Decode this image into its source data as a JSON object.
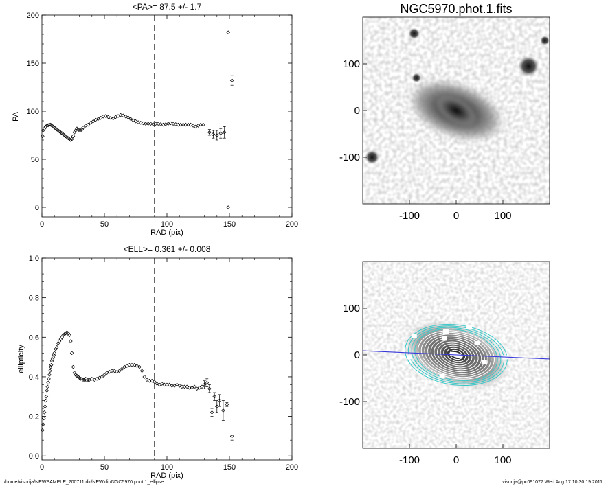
{
  "footer": {
    "path": "/home/visurija/NEWSAMPLE_200711.dir/NEW.dir/NGC5970.phot.1_ellipse",
    "user_stamp": "visurija@pc091077  Wed Aug 17 10:30:19 2011"
  },
  "chart_data": [
    {
      "type": "scatter",
      "title": "<PA>=  87.5 +/-   1.7",
      "xlabel": "RAD (pix)",
      "ylabel": "PA",
      "xlim": [
        0,
        200
      ],
      "ylim": [
        -10,
        200
      ],
      "xticks": [
        0,
        50,
        100,
        150,
        200
      ],
      "yticks": [
        0,
        50,
        100,
        150,
        200
      ],
      "vlines": [
        90,
        120
      ],
      "profile": [
        [
          0.5,
          74
        ],
        [
          1,
          80
        ],
        [
          2,
          82
        ],
        [
          3,
          84
        ],
        [
          4,
          85
        ],
        [
          5,
          85.5
        ],
        [
          6,
          86
        ],
        [
          7,
          86
        ],
        [
          8,
          85
        ],
        [
          9,
          84
        ],
        [
          10,
          83
        ],
        [
          11,
          82
        ],
        [
          12,
          81
        ],
        [
          13,
          80
        ],
        [
          14,
          79
        ],
        [
          15,
          78
        ],
        [
          16,
          77
        ],
        [
          17,
          76
        ],
        [
          18,
          75
        ],
        [
          19,
          74
        ],
        [
          20,
          73
        ],
        [
          21,
          72
        ],
        [
          22,
          71
        ],
        [
          23,
          70
        ],
        [
          24,
          71
        ],
        [
          25,
          74
        ],
        [
          26,
          78
        ],
        [
          27,
          80
        ],
        [
          28,
          82
        ],
        [
          29,
          81
        ],
        [
          30,
          80
        ],
        [
          31,
          80
        ],
        [
          32,
          81
        ],
        [
          33,
          83
        ],
        [
          35,
          85
        ],
        [
          37,
          86
        ],
        [
          39,
          88
        ],
        [
          41,
          89.5
        ],
        [
          43,
          91
        ],
        [
          45,
          92
        ],
        [
          47,
          93
        ],
        [
          49,
          94.5
        ],
        [
          51,
          95
        ],
        [
          53,
          94
        ],
        [
          55,
          93
        ],
        [
          57,
          92.5
        ],
        [
          59,
          94
        ],
        [
          61,
          95
        ],
        [
          63,
          96
        ],
        [
          65,
          95.5
        ],
        [
          67,
          94.5
        ],
        [
          69,
          93.5
        ],
        [
          71,
          92
        ],
        [
          73,
          90.5
        ],
        [
          75,
          89.5
        ],
        [
          77,
          88.5
        ],
        [
          79,
          88
        ],
        [
          81,
          87.5
        ],
        [
          83,
          87
        ],
        [
          85,
          87
        ],
        [
          87,
          87
        ],
        [
          89,
          86.5
        ],
        [
          91,
          87
        ],
        [
          93,
          87
        ],
        [
          95,
          86.5
        ],
        [
          97,
          86
        ],
        [
          99,
          86.5
        ],
        [
          101,
          87
        ],
        [
          103,
          87.5
        ],
        [
          105,
          87
        ],
        [
          107,
          86.5
        ],
        [
          109,
          86
        ],
        [
          111,
          86
        ],
        [
          113,
          86
        ],
        [
          115,
          86
        ],
        [
          117,
          86
        ],
        [
          119,
          86
        ],
        [
          121,
          85
        ],
        [
          123,
          84
        ],
        [
          125,
          85
        ],
        [
          127,
          86
        ],
        [
          129,
          86
        ]
      ],
      "errbars": [
        [
          134,
          78,
          3
        ],
        [
          137,
          76,
          4
        ],
        [
          140,
          75,
          5
        ],
        [
          143,
          77,
          5
        ],
        [
          146,
          78,
          6
        ],
        [
          152,
          132,
          5
        ]
      ],
      "outliers": [
        [
          149,
          182
        ],
        [
          149,
          0
        ]
      ]
    },
    {
      "type": "scatter",
      "title": "<ELL>= 0.361 +/-  0.008",
      "xlabel": "RAD (pix)",
      "ylabel": "ellipticity",
      "xlim": [
        0,
        200
      ],
      "ylim": [
        -0.02,
        1.0
      ],
      "xticks": [
        0,
        50,
        100,
        150,
        200
      ],
      "yticks": [
        0.0,
        0.2,
        0.4,
        0.6,
        0.8,
        1.0
      ],
      "ytick_labels": [
        "0.0",
        "0.2",
        "0.4",
        "0.6",
        "0.8",
        "1.0"
      ],
      "vlines": [
        90,
        120
      ],
      "profile": [
        [
          0.5,
          0.13
        ],
        [
          1,
          0.16
        ],
        [
          1.5,
          0.19
        ],
        [
          2,
          0.22
        ],
        [
          2.5,
          0.25
        ],
        [
          3,
          0.28
        ],
        [
          3.5,
          0.3
        ],
        [
          4,
          0.33
        ],
        [
          4.5,
          0.35
        ],
        [
          5,
          0.37
        ],
        [
          5.5,
          0.39
        ],
        [
          6,
          0.41
        ],
        [
          6.5,
          0.43
        ],
        [
          7,
          0.45
        ],
        [
          7.5,
          0.46
        ],
        [
          8,
          0.48
        ],
        [
          8.5,
          0.49
        ],
        [
          9,
          0.5
        ],
        [
          9.5,
          0.51
        ],
        [
          10,
          0.52
        ],
        [
          11,
          0.54
        ],
        [
          12,
          0.55
        ],
        [
          13,
          0.57
        ],
        [
          14,
          0.58
        ],
        [
          15,
          0.59
        ],
        [
          16,
          0.6
        ],
        [
          17,
          0.61
        ],
        [
          18,
          0.615
        ],
        [
          19,
          0.62
        ],
        [
          20,
          0.625
        ],
        [
          21,
          0.62
        ],
        [
          22,
          0.61
        ],
        [
          23,
          0.58
        ],
        [
          24,
          0.52
        ],
        [
          25,
          0.45
        ],
        [
          26,
          0.42
        ],
        [
          27,
          0.41
        ],
        [
          28,
          0.405
        ],
        [
          29,
          0.4
        ],
        [
          30,
          0.395
        ],
        [
          31,
          0.39
        ],
        [
          32,
          0.39
        ],
        [
          33,
          0.385
        ],
        [
          34,
          0.385
        ],
        [
          35,
          0.39
        ],
        [
          36,
          0.38
        ],
        [
          37,
          0.385
        ],
        [
          38,
          0.385
        ],
        [
          40,
          0.39
        ],
        [
          42,
          0.385
        ],
        [
          44,
          0.39
        ],
        [
          46,
          0.395
        ],
        [
          48,
          0.4
        ],
        [
          50,
          0.41
        ],
        [
          52,
          0.42
        ],
        [
          54,
          0.425
        ],
        [
          56,
          0.43
        ],
        [
          58,
          0.43
        ],
        [
          60,
          0.425
        ],
        [
          62,
          0.43
        ],
        [
          64,
          0.44
        ],
        [
          66,
          0.45
        ],
        [
          68,
          0.455
        ],
        [
          70,
          0.46
        ],
        [
          72,
          0.46
        ],
        [
          74,
          0.46
        ],
        [
          76,
          0.455
        ],
        [
          78,
          0.45
        ],
        [
          80,
          0.43
        ],
        [
          82,
          0.4
        ],
        [
          84,
          0.385
        ],
        [
          86,
          0.38
        ],
        [
          88,
          0.38
        ],
        [
          90,
          0.375
        ],
        [
          92,
          0.365
        ],
        [
          94,
          0.36
        ],
        [
          96,
          0.365
        ],
        [
          98,
          0.36
        ],
        [
          100,
          0.36
        ],
        [
          102,
          0.36
        ],
        [
          104,
          0.355
        ],
        [
          106,
          0.355
        ],
        [
          108,
          0.36
        ],
        [
          110,
          0.355
        ],
        [
          112,
          0.35
        ],
        [
          114,
          0.35
        ],
        [
          116,
          0.35
        ],
        [
          118,
          0.345
        ],
        [
          120,
          0.345
        ],
        [
          122,
          0.35
        ],
        [
          124,
          0.34
        ],
        [
          126,
          0.345
        ],
        [
          128,
          0.35
        ]
      ],
      "errbars": [
        [
          130,
          0.36,
          0.02
        ],
        [
          132,
          0.37,
          0.02
        ],
        [
          134,
          0.34,
          0.02
        ],
        [
          136,
          0.22,
          0.02
        ],
        [
          138,
          0.3,
          0.02
        ],
        [
          140,
          0.25,
          0.03
        ],
        [
          142,
          0.28,
          0.03
        ],
        [
          145,
          0.23,
          0.05
        ],
        [
          148,
          0.26,
          0.01
        ],
        [
          152,
          0.1,
          0.02
        ]
      ]
    },
    {
      "type": "heatmap",
      "title": "NGC5970.phot.1.fits",
      "xlim": [
        -200,
        200
      ],
      "ylim": [
        -200,
        200
      ],
      "xticks": [
        -100,
        0,
        100
      ],
      "yticks": [
        100,
        0,
        -100
      ],
      "galaxy": {
        "center": [
          0,
          0
        ],
        "semi_major": 110,
        "ellipticity": 0.45,
        "pa_deg": 20
      },
      "stars": [
        [
          -90,
          165,
          12
        ],
        [
          -85,
          70,
          10
        ],
        [
          155,
          95,
          22
        ],
        [
          -180,
          -100,
          15
        ],
        [
          190,
          150,
          10
        ]
      ]
    },
    {
      "type": "heatmap",
      "title": "",
      "xlim": [
        -200,
        200
      ],
      "ylim": [
        -200,
        200
      ],
      "xticks": [
        -100,
        0,
        100
      ],
      "yticks": [
        100,
        0,
        -100
      ],
      "galaxy": {
        "center": [
          0,
          0
        ],
        "semi_major": 110,
        "ellipticity": 0.45,
        "pa_deg": 20
      },
      "contours": {
        "count": 16,
        "max_a": 110,
        "ell": 0.361,
        "pa_deg": 20,
        "outer_color": "#37c8c8",
        "inner_color": "#ffffff"
      },
      "major_axis_line": {
        "color": "#3a3adc",
        "pa_deg": 87.5
      },
      "masks": [
        [
          -22,
          50
        ],
        [
          -25,
          35
        ],
        [
          28,
          60
        ],
        [
          -90,
          40
        ],
        [
          -100,
          -5
        ],
        [
          105,
          -5
        ],
        [
          60,
          -15
        ],
        [
          -30,
          -45
        ],
        [
          45,
          25
        ]
      ]
    }
  ]
}
